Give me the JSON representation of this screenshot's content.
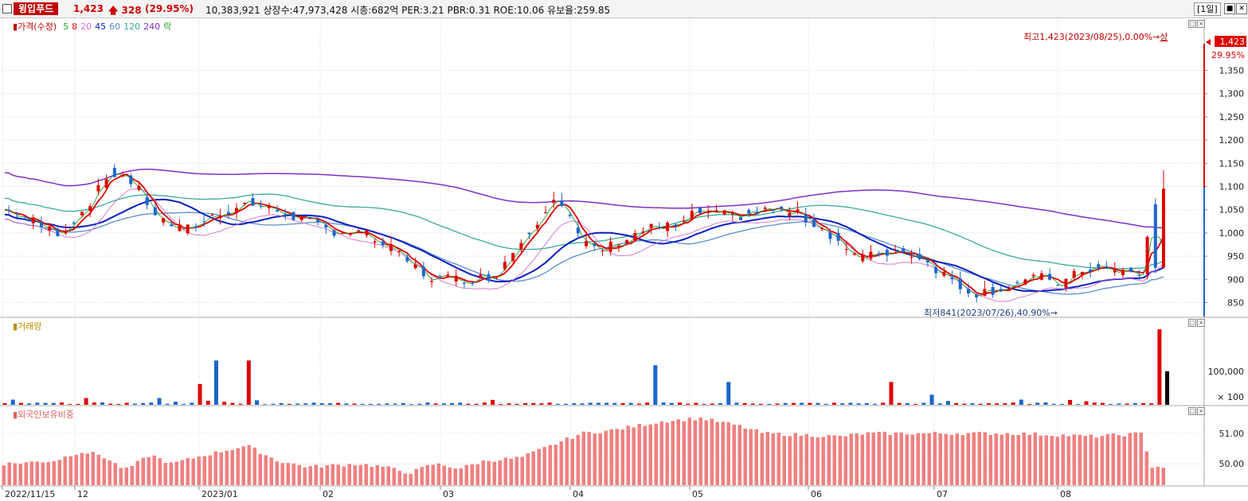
{
  "header": {
    "stock_name": "윙입푸드",
    "price": "1,423",
    "change_arrow": "up-arrow-icon",
    "change": "328",
    "change_pct": "(29.95%)",
    "stats": "10,383,921  상장수:47,973,428  시총:682억  PER:3.21  PBR:0.31  ROE:10.06  유보율:259.85",
    "period": "[1일]",
    "min_icon": "minimize-icon",
    "close_icon": "close-icon"
  },
  "legend": {
    "price_label": "가격(수정)",
    "ma": [
      "5",
      "8",
      "20",
      "45",
      "60",
      "120",
      "240"
    ],
    "fall_label": "락"
  },
  "colors": {
    "up": "#e00000",
    "down": "#1a66cc",
    "ma5": "#2aa02a",
    "ma8": "#e00000",
    "ma20": "#d070c8",
    "ma45": "#0a20c0",
    "ma60": "#5a8ec8",
    "ma120": "#3aaa9a",
    "ma240": "#8030c8",
    "foreign": "#f08080",
    "legend_vol": "#b89000",
    "legend_foreign": "#e06060"
  },
  "annotations": {
    "high": "최고1,423(2023/08/25),0.00%→",
    "high_mark": "상",
    "low": "최저841(2023/07/26),40.90%→",
    "last_price": "1,423",
    "last_pct": "29.95%"
  },
  "volume_pane": {
    "title": "거래량",
    "axis_label": "100,000",
    "unit_label": "× 100"
  },
  "foreign_pane": {
    "title": "외국인보유비중",
    "axis_labels": [
      "51.00",
      "50.00"
    ]
  },
  "x_axis": {
    "labels": [
      "2022/11/15",
      "12",
      "2023/01",
      "02",
      "03",
      "04",
      "05",
      "06",
      "07",
      "08"
    ]
  },
  "chart_data": {
    "type": "candlestick",
    "ylim": [
      820,
      1440
    ],
    "yticks": [
      850,
      900,
      950,
      1000,
      1050,
      1100,
      1150,
      1200,
      1250,
      1300,
      1350
    ],
    "high_point": {
      "value": 1423,
      "date": "2023/08/25"
    },
    "low_point": {
      "value": 841,
      "date": "2023/07/26"
    },
    "last_close": 1423,
    "moving_averages": [
      "5",
      "8",
      "20",
      "45",
      "60",
      "120",
      "240"
    ],
    "volume": {
      "ylim": [
        0,
        230000
      ],
      "ytick": 100000
    },
    "foreign_ratio": {
      "ylim": [
        49.3,
        51.6
      ],
      "yticks": [
        51.0,
        50.0
      ]
    }
  }
}
